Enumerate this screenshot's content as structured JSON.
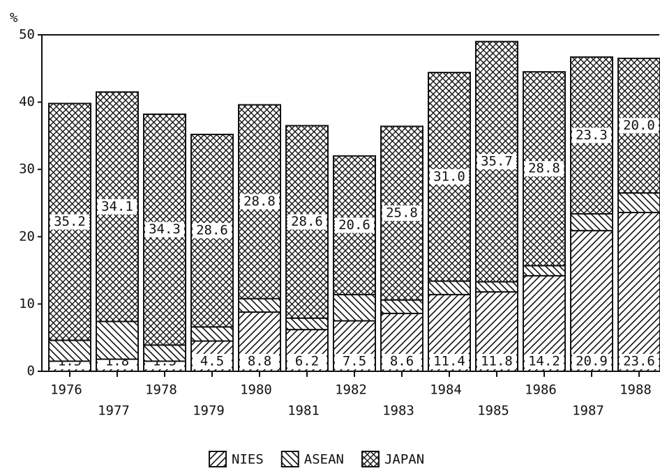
{
  "chart_data": {
    "type": "bar",
    "stacked": true,
    "y_label": "%",
    "categories": [
      "1976",
      "1977",
      "1978",
      "1979",
      "1980",
      "1981",
      "1982",
      "1983",
      "1984",
      "1985",
      "1986",
      "1987",
      "1988"
    ],
    "series": [
      {
        "name": "NIES",
        "color": "#111111",
        "pattern": "diagonal",
        "values": [
          1.5,
          1.8,
          1.5,
          4.5,
          8.8,
          6.2,
          7.5,
          8.6,
          11.4,
          11.8,
          14.2,
          20.9,
          23.6
        ],
        "value_labels": [
          "1.5",
          "1.8",
          "1.5",
          "4.5",
          "8.8",
          "6.2",
          "7.5",
          "8.6",
          "11.4",
          "11.8",
          "14.2",
          "20.9",
          "23.6"
        ]
      },
      {
        "name": "ASEAN",
        "color": "#111111",
        "pattern": "anti-diagonal",
        "values": [
          3.1,
          5.6,
          2.4,
          2.1,
          2.0,
          1.7,
          3.9,
          2.0,
          2.0,
          1.5,
          1.5,
          2.5,
          2.9
        ]
      },
      {
        "name": "JAPAN",
        "color": "#111111",
        "pattern": "crosshatch",
        "values": [
          35.2,
          34.1,
          34.3,
          28.6,
          28.8,
          28.6,
          20.6,
          25.8,
          31.0,
          35.7,
          28.8,
          23.3,
          20.0
        ],
        "value_labels": [
          "35.2",
          "34.1",
          "34.3",
          "28.6",
          "28.8",
          "28.6",
          "20.6",
          "25.8",
          "31.0",
          "35.7",
          "28.8",
          "23.3",
          "20.0"
        ]
      }
    ],
    "ylim": [
      0,
      50
    ],
    "yticks": [
      0,
      10,
      20,
      30,
      40,
      50
    ],
    "legend": "bottom"
  }
}
